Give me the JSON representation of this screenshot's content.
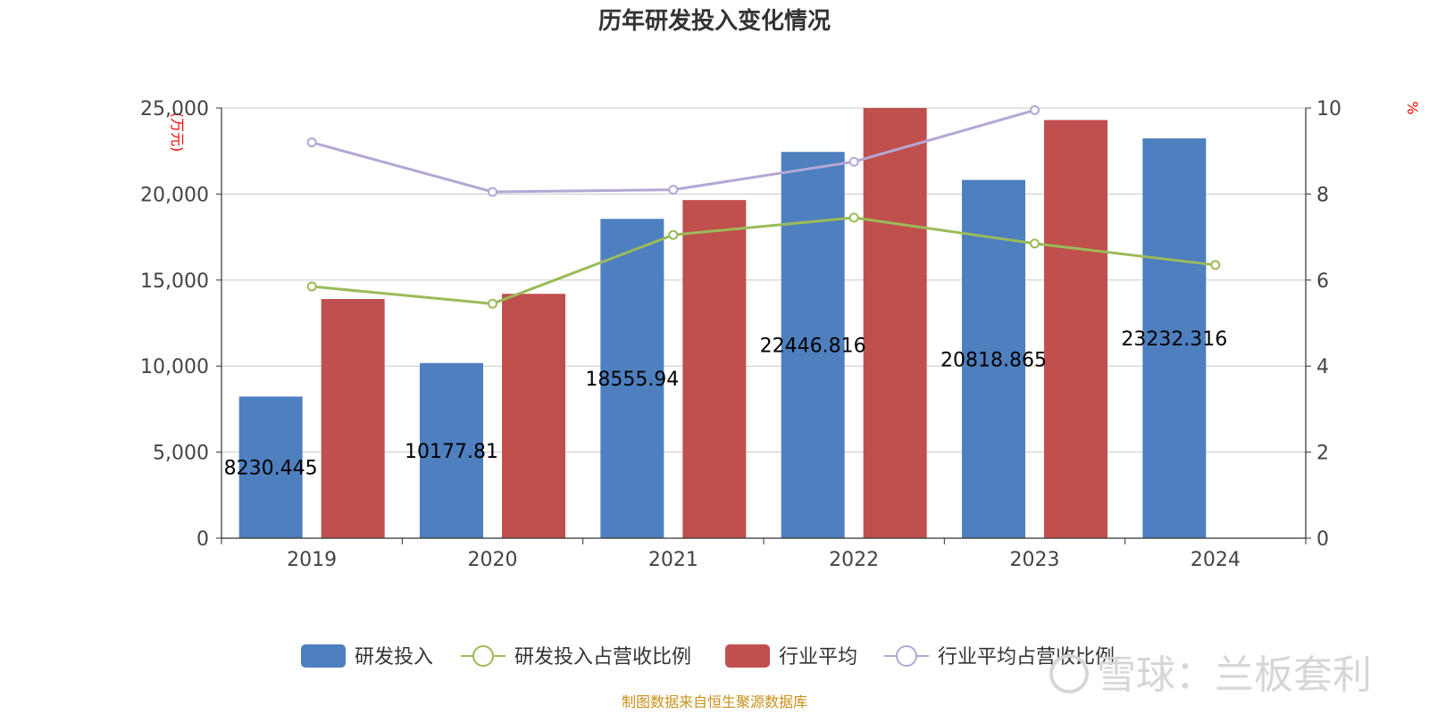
{
  "chart_data": {
    "type": "bar",
    "title": "历年研发投入变化情况",
    "categories": [
      "2019",
      "2020",
      "2021",
      "2022",
      "2023",
      "2024"
    ],
    "left_axis": {
      "unit_label": "(万元)",
      "range": [
        0,
        25000
      ],
      "ticks": [
        "0",
        "5,000",
        "10,000",
        "15,000",
        "20,000",
        "25,000"
      ]
    },
    "right_axis": {
      "unit_label": "%",
      "range": [
        0,
        10
      ],
      "ticks": [
        "0",
        "2",
        "4",
        "6",
        "8",
        "10"
      ]
    },
    "bar_series": [
      {
        "name": "研发投入",
        "color": "#4e7fbf",
        "values": [
          8230.445,
          10177.81,
          18555.94,
          22446.816,
          20818.865,
          23232.316
        ],
        "labels": [
          "8230.445",
          "10177.81",
          "18555.94",
          "22446.816",
          "20818.865",
          "23232.316"
        ]
      },
      {
        "name": "行业平均",
        "color": "#c0504d",
        "values": [
          13900,
          14200,
          19650,
          25000,
          24300,
          null
        ]
      }
    ],
    "line_series": [
      {
        "name": "研发投入占营收比例",
        "color": "#9bbb59",
        "axis": "right",
        "values": [
          5.85,
          5.45,
          7.05,
          7.45,
          6.85,
          6.35
        ]
      },
      {
        "name": "行业平均占营收比例",
        "color": "#b4a7d6",
        "axis": "right",
        "values": [
          9.2,
          8.05,
          8.1,
          8.75,
          9.95,
          null
        ]
      }
    ],
    "legend": [
      "研发投入",
      "研发投入占营收比例",
      "行业平均",
      "行业平均占营收比例"
    ],
    "legend_position": "bottom",
    "source": "制图数据来自恒生聚源数据库",
    "watermark": "雪球：兰板套利"
  }
}
